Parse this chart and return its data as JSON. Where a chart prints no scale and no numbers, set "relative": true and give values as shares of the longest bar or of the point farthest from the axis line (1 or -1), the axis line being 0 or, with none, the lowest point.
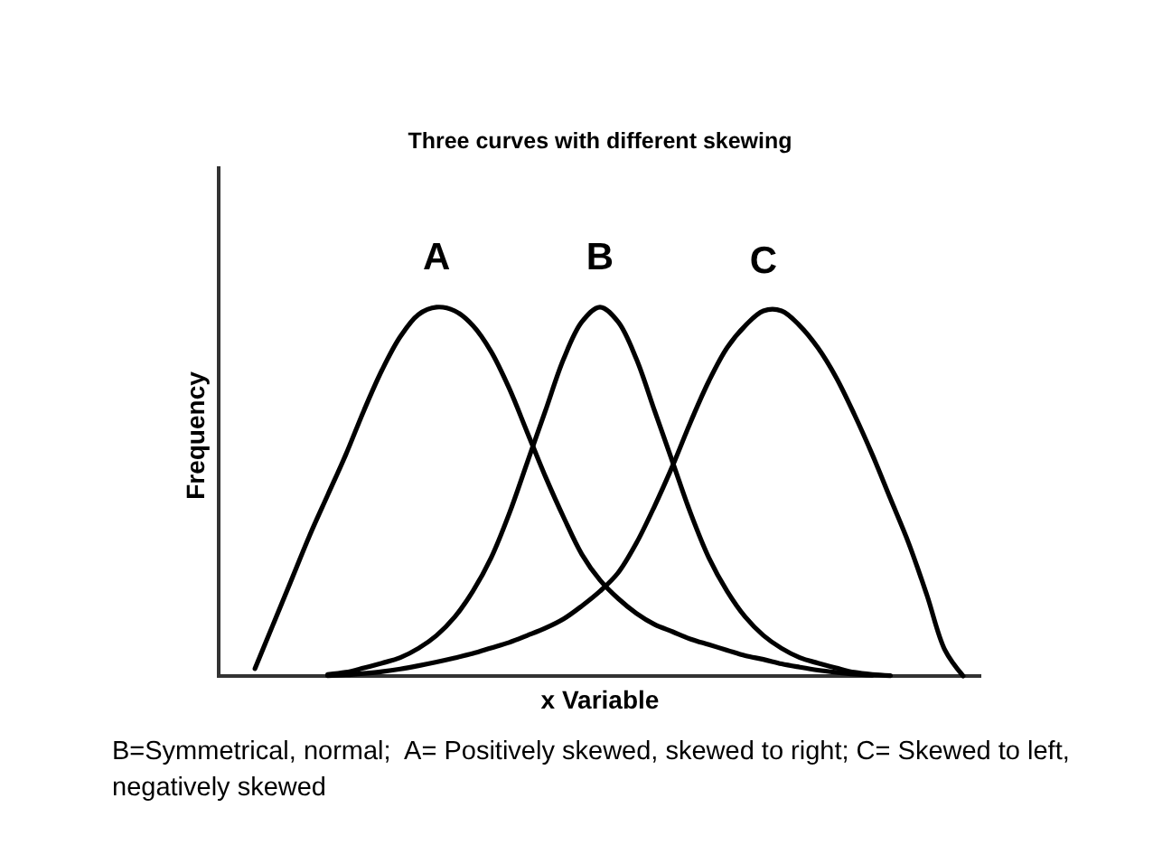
{
  "chart_data": {
    "type": "line",
    "title": "Three curves with different skewing",
    "xlabel": "x Variable",
    "ylabel": "Frequency",
    "annotations": [
      "B=Symmetrical, normal;  A= Positively skewed, skewed to right; C= Skewed to left, negatively skewed"
    ],
    "relative": true,
    "categories": [
      null,
      null,
      null,
      null,
      null,
      null,
      null,
      null,
      null,
      null,
      null,
      null,
      null,
      null,
      null,
      null,
      null,
      null,
      null,
      null,
      null,
      null,
      null,
      null,
      null,
      null,
      null,
      null,
      null,
      null,
      null,
      null,
      null,
      null,
      null,
      null,
      null,
      null,
      null,
      null,
      null,
      null,
      null
    ],
    "series": [
      {
        "name": "A",
        "color": "#000000",
        "values": [
          null,
          null,
          0.02,
          0.14,
          0.26,
          0.38,
          0.49,
          0.6,
          0.72,
          0.83,
          0.92,
          0.98,
          1,
          0.99,
          0.95,
          0.88,
          0.78,
          0.66,
          0.54,
          0.43,
          0.33,
          0.26,
          0.21,
          0.17,
          0.14,
          0.12,
          0.1,
          0.085,
          0.07,
          0.055,
          0.045,
          0.033,
          0.024,
          0.016,
          0.01,
          0.005,
          0.002,
          null,
          null,
          null,
          null,
          null,
          null
        ]
      },
      {
        "name": "B",
        "color": "#000000",
        "values": [
          null,
          null,
          null,
          null,
          null,
          null,
          0.004,
          0.01,
          0.022,
          0.035,
          0.05,
          0.075,
          0.11,
          0.16,
          0.23,
          0.32,
          0.44,
          0.58,
          0.72,
          0.86,
          0.96,
          1,
          0.96,
          0.86,
          0.72,
          0.58,
          0.44,
          0.32,
          0.23,
          0.16,
          0.11,
          0.075,
          0.05,
          0.035,
          0.022,
          0.01,
          0.004,
          0.001,
          null,
          null,
          null,
          null,
          null
        ]
      },
      {
        "name": "C",
        "color": "#000000",
        "values": [
          null,
          null,
          null,
          null,
          null,
          null,
          0.001,
          0.003,
          0.007,
          0.012,
          0.019,
          0.028,
          0.038,
          0.049,
          0.061,
          0.076,
          0.091,
          0.11,
          0.13,
          0.155,
          0.19,
          0.23,
          0.28,
          0.36,
          0.46,
          0.57,
          0.69,
          0.8,
          0.89,
          0.95,
          0.99,
          0.99,
          0.95,
          0.89,
          0.81,
          0.71,
          0.6,
          0.48,
          0.36,
          0.22,
          0.07,
          0,
          null
        ]
      }
    ]
  }
}
